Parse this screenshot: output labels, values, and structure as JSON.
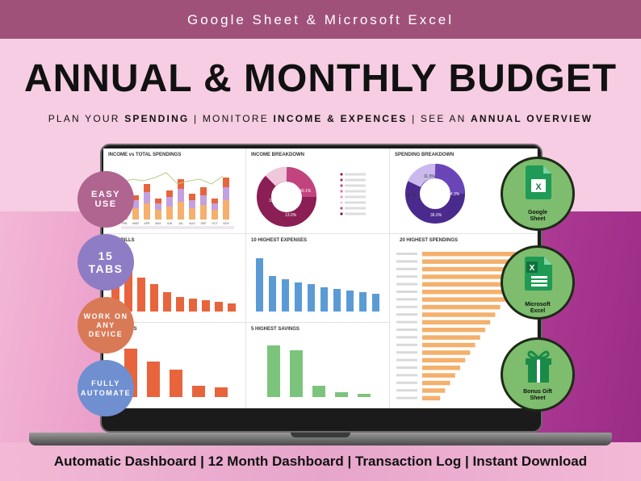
{
  "header": {
    "platforms": "Google Sheet & Microsoft Excel",
    "title": "ANNUAL & MONTHLY BUDGET",
    "subtitle": {
      "p1": "PLAN YOUR ",
      "b1": "SPENDING",
      "p2": "  | MONITORE ",
      "b2": "INCOME & EXPENCES",
      "p3": " | SEE AN ",
      "b3": "ANNUAL OVERVIEW"
    }
  },
  "features": [
    {
      "lines": [
        "EASY",
        "USE"
      ],
      "color": "#b06490"
    },
    {
      "lines": [
        "15",
        "TABS"
      ],
      "color": "#8e7cc5"
    },
    {
      "lines": [
        "WORK ON",
        "ANY",
        "DEVICE"
      ],
      "color": "#d97a57"
    },
    {
      "lines": [
        "FULLY",
        "AUTOMATE"
      ],
      "color": "#6f8fd0"
    }
  ],
  "badges": [
    {
      "label_line1": "Google",
      "label_line2": "Sheet",
      "icon": "google-sheets-icon"
    },
    {
      "label_line1": "Microsoft",
      "label_line2": "Excel",
      "icon": "microsoft-excel-icon"
    },
    {
      "label_line1": "Bonus Gift",
      "label_line2": "Sheet",
      "icon": "gift-box-icon"
    }
  ],
  "dashboard": {
    "panels": {
      "income_vs_spendings": "INCOME vs TOTAL SPENDINGS",
      "income_breakdown": "INCOME BREAKDOWN",
      "spending_breakdown": "SPENDING BREAKDOWN",
      "highest_bills": "T BILLS",
      "highest_expenses": "10 HIGHEST EXPENSES",
      "highest_spendings": "20 HIGHEST SPENDINGS",
      "highest_debts": "T DEBTS",
      "highest_savings": "5 HIGHEST SAVINGS"
    },
    "months": [
      "FEB",
      "MAR",
      "APR",
      "MAY",
      "JUN",
      "JUL",
      "AUG",
      "SEP",
      "OCT",
      "NOV"
    ],
    "income_donut_labels": [
      "40.1%",
      "33.1%",
      "13.0%"
    ],
    "spending_donut_labels": [
      "11.5%",
      "8.7%",
      "34.3%",
      "36.0%"
    ]
  },
  "colors": {
    "top_bar": "#a0517a",
    "orange_bars": "#e8643c",
    "blue_bars": "#5b9bd5",
    "green_bars": "#7cc47c",
    "peach_bars": "#f4b06c",
    "income_donut": "#8a1e55",
    "spending_donut": "#4b2a8e"
  },
  "footer": "Automatic Dashboard | 12 Month Dashboard | Transaction Log | Instant Download"
}
